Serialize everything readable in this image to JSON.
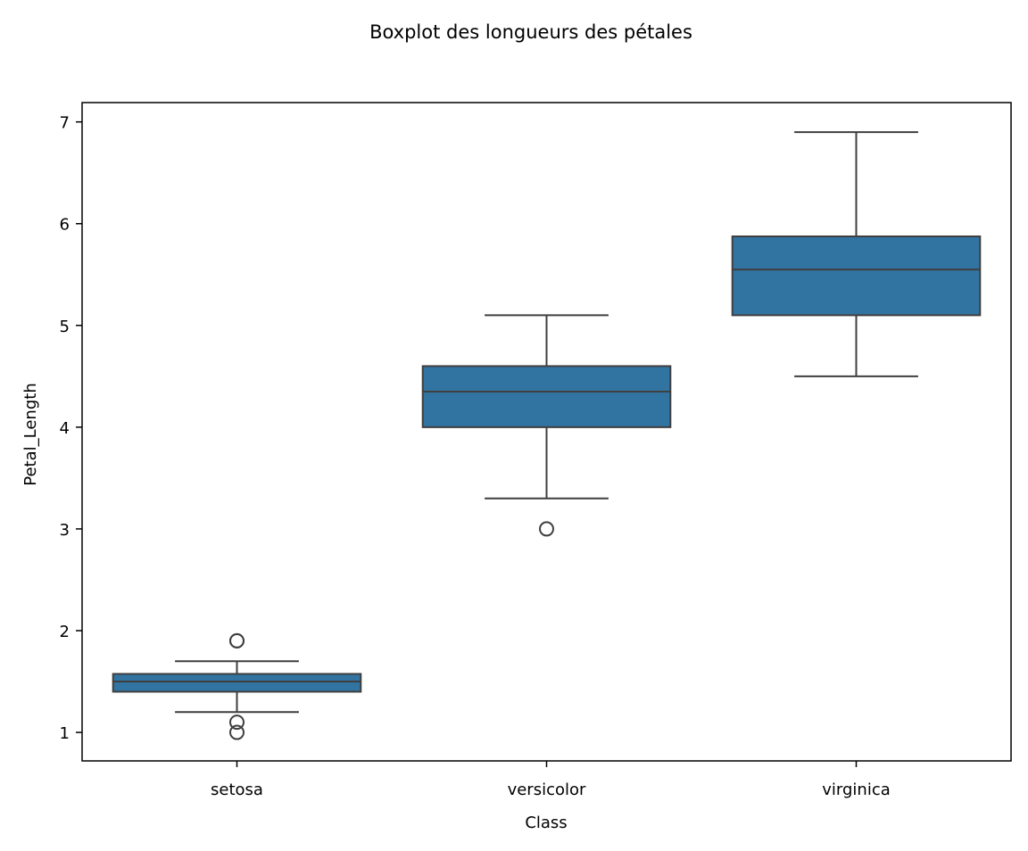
{
  "chart_data": {
    "type": "box",
    "title": "Boxplot des longueurs des pétales",
    "xlabel": "Class",
    "ylabel": "Petal_Length",
    "ylim": [
      0.72,
      7.19
    ],
    "yticks": [
      1,
      2,
      3,
      4,
      5,
      6,
      7
    ],
    "grid": false,
    "box_color": "#3274a1",
    "line_color": "#3f3f3f",
    "categories": [
      "setosa",
      "versicolor",
      "virginica"
    ],
    "boxes": [
      {
        "category": "setosa",
        "whisker_low": 1.2,
        "q1": 1.4,
        "median": 1.5,
        "q3": 1.575,
        "whisker_high": 1.7,
        "outliers": [
          1.1,
          1.0,
          1.9,
          1.9
        ]
      },
      {
        "category": "versicolor",
        "whisker_low": 3.3,
        "q1": 4.0,
        "median": 4.35,
        "q3": 4.6,
        "whisker_high": 5.1,
        "outliers": [
          3.0
        ]
      },
      {
        "category": "virginica",
        "whisker_low": 4.5,
        "q1": 5.1,
        "median": 5.55,
        "q3": 5.875,
        "whisker_high": 6.9,
        "outliers": []
      }
    ]
  }
}
